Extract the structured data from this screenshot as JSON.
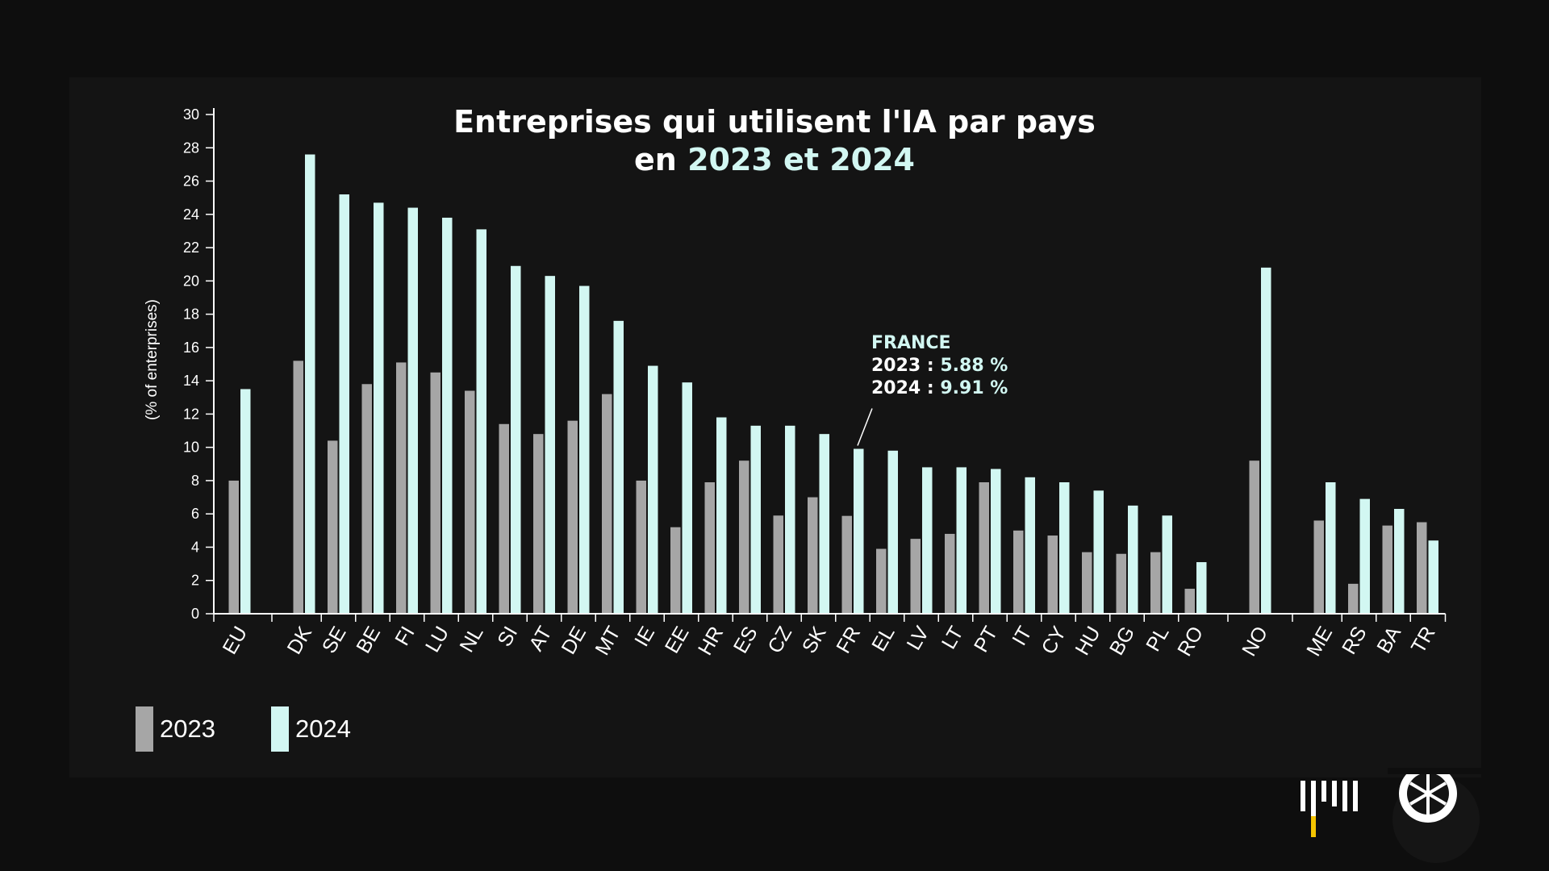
{
  "title": {
    "line1": "Entreprises qui utilisent l'IA par pays",
    "line2_prefix": "en ",
    "line2_highlight": "2023 et 2024"
  },
  "annotation": {
    "label": "FRANCE",
    "row1_prefix": "2023 : ",
    "row1_value": "5.88 %",
    "row2_prefix": "2024 : ",
    "row2_value": "9.91 %",
    "target_category": "FR"
  },
  "logos": {
    "left": "bars-logo-icon",
    "right": "citrus-slice-logo-icon"
  },
  "colors": {
    "background": "#0e0e0e",
    "panel": "#141414",
    "series_2023": "#a6a6a6",
    "series_2024": "#d2f7f2",
    "highlight_text": "#d2f7f2",
    "axis": "#ffffff",
    "logo_yellow": "#f5c400"
  },
  "chart_data": {
    "type": "bar",
    "ylabel": "(% of enterprises)",
    "xlabel": "",
    "ylim": [
      0,
      30
    ],
    "yticks": [
      0,
      2,
      4,
      6,
      8,
      10,
      12,
      14,
      16,
      18,
      20,
      22,
      24,
      26,
      28,
      30
    ],
    "grid": false,
    "legend_position": "bottom-left",
    "categories": [
      "EU",
      "DK",
      "SE",
      "BE",
      "FI",
      "LU",
      "NL",
      "SI",
      "AT",
      "DE",
      "MT",
      "IE",
      "EE",
      "HR",
      "ES",
      "CZ",
      "SK",
      "FR",
      "EL",
      "LV",
      "LT",
      "PT",
      "IT",
      "CY",
      "HU",
      "BG",
      "PL",
      "RO",
      "NO",
      "ME",
      "RS",
      "BA",
      "TR"
    ],
    "series": [
      {
        "name": "2023",
        "values": [
          8.0,
          15.2,
          10.4,
          13.8,
          15.1,
          14.5,
          13.4,
          11.4,
          10.8,
          11.6,
          13.2,
          8.0,
          5.2,
          7.9,
          9.2,
          5.9,
          7.0,
          5.88,
          3.9,
          4.5,
          4.8,
          7.9,
          5.0,
          4.7,
          3.7,
          3.6,
          3.7,
          1.5,
          9.2,
          5.6,
          1.8,
          5.3,
          5.5
        ]
      },
      {
        "name": "2024",
        "values": [
          13.5,
          27.6,
          25.2,
          24.7,
          24.4,
          23.8,
          23.1,
          20.9,
          20.3,
          19.7,
          17.6,
          14.9,
          13.9,
          11.8,
          11.3,
          11.3,
          10.8,
          9.91,
          9.8,
          8.8,
          8.8,
          8.7,
          8.2,
          7.9,
          7.4,
          6.5,
          5.9,
          3.1,
          20.8,
          7.9,
          6.9,
          6.3,
          4.4
        ]
      }
    ]
  }
}
